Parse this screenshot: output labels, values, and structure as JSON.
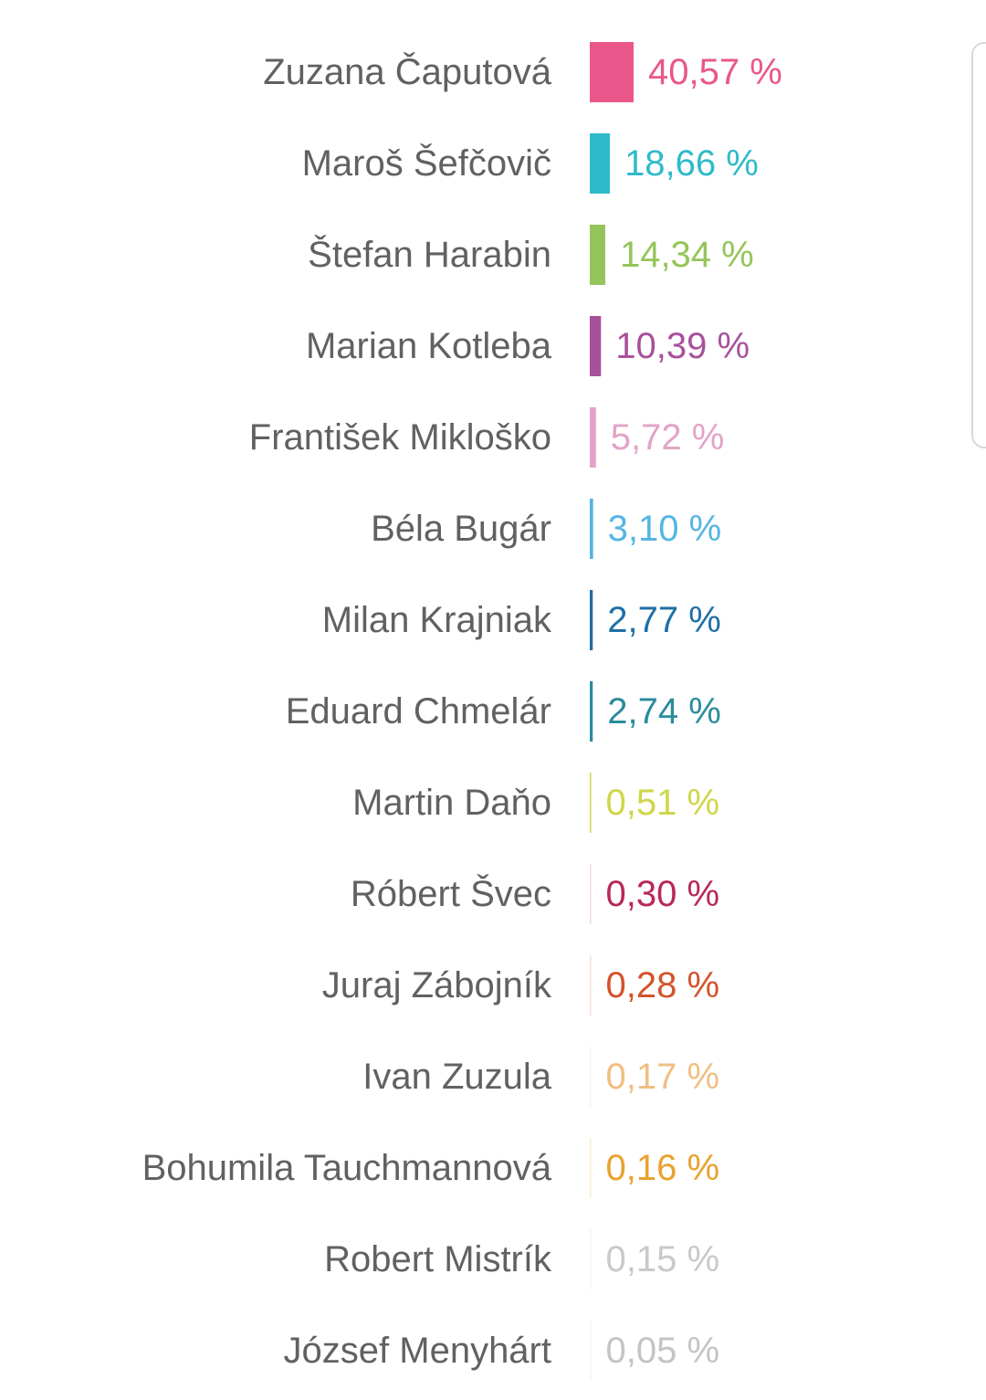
{
  "chart_data": {
    "type": "bar",
    "orientation": "horizontal",
    "categories": [
      "Zuzana Čaputová",
      "Maroš Šefčovič",
      "Štefan Harabin",
      "Marian Kotleba",
      "František Mikloško",
      "Béla Bugár",
      "Milan Krajniak",
      "Eduard Chmelár",
      "Martin Daňo",
      "Róbert Švec",
      "Juraj Zábojník",
      "Ivan Zuzula",
      "Bohumila Tauchmannová",
      "Robert Mistrík",
      "József Menyhárt"
    ],
    "values": [
      40.57,
      18.66,
      14.34,
      10.39,
      5.72,
      3.1,
      2.77,
      2.74,
      0.51,
      0.3,
      0.28,
      0.17,
      0.16,
      0.15,
      0.05
    ],
    "value_labels": [
      "40,57 %",
      "18,66 %",
      "14,34 %",
      "10,39 %",
      "5,72 %",
      "3,10 %",
      "2,77 %",
      "2,74 %",
      "0,51 %",
      "0,30 %",
      "0,28 %",
      "0,17 %",
      "0,16 %",
      "0,15 %",
      "0,05 %"
    ],
    "colors": [
      "#e9578a",
      "#2fbac9",
      "#95c55a",
      "#a8519b",
      "#e3a3c8",
      "#55b5e3",
      "#1f6fa6",
      "#2a8c9c",
      "#cfd64a",
      "#b8285b",
      "#d4532c",
      "#f1bf82",
      "#e8a22f",
      "#c9c9c9",
      "#c4c4c4"
    ],
    "label_color": "#616161",
    "title": "",
    "xlabel": "",
    "ylabel": "",
    "xlim": [
      0,
      40.57
    ],
    "grid": false,
    "legend": "none"
  }
}
